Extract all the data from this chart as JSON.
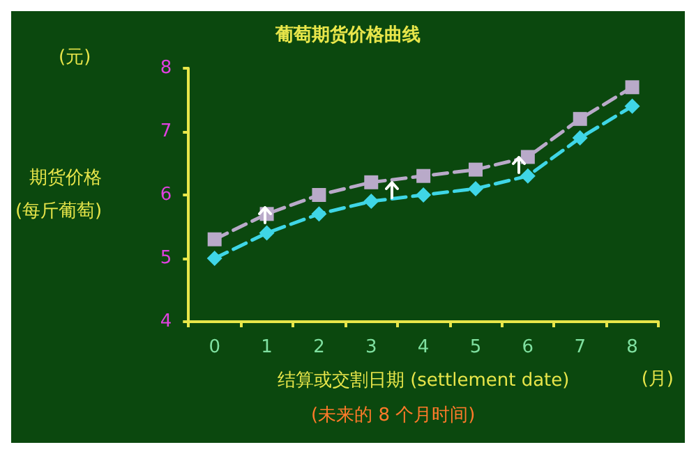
{
  "chart_data": {
    "type": "line",
    "title": "葡萄期货价格曲线",
    "xlabel": "结算或交割日期 (settlement date)",
    "ylabel": "期货价格\n(每斤葡萄)",
    "annotations": [
      "(元)",
      "(月)",
      "(未来的 8 个月时间)"
    ],
    "categories": [
      "0",
      "1",
      "2",
      "3",
      "4",
      "5",
      "6",
      "7",
      "8"
    ],
    "series": [
      {
        "color": "#b9aac9",
        "marker": "square",
        "values": [
          5.3,
          5.7,
          6.0,
          6.2,
          6.3,
          6.4,
          6.6,
          7.2,
          7.7
        ]
      },
      {
        "color": "#3fd6e6",
        "marker": "diamond",
        "values": [
          5.0,
          5.4,
          5.7,
          5.9,
          6.0,
          6.1,
          6.3,
          6.9,
          7.4
        ]
      }
    ],
    "ylim": [
      4,
      8
    ],
    "yticks": [
      4,
      5,
      6,
      7,
      8
    ],
    "grid": false,
    "line_style": "dashed"
  }
}
